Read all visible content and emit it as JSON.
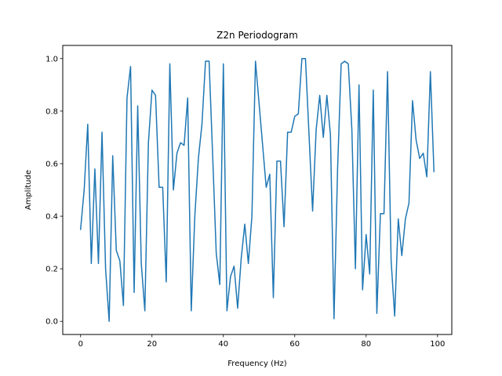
{
  "chart_data": {
    "type": "line",
    "title": "Z2n Periodogram",
    "xlabel": "Frequency (Hz)",
    "ylabel": "Amplitude",
    "xlim": [
      -5,
      104
    ],
    "ylim": [
      -0.05,
      1.05
    ],
    "xticks": [
      0,
      20,
      40,
      60,
      80,
      100
    ],
    "xtick_labels": [
      "0",
      "20",
      "40",
      "60",
      "80",
      "100"
    ],
    "yticks": [
      0.0,
      0.2,
      0.4,
      0.6,
      0.8,
      1.0
    ],
    "ytick_labels": [
      "0.0",
      "0.2",
      "0.4",
      "0.6",
      "0.8",
      "1.0"
    ],
    "grid": false,
    "legend": "none",
    "colors": {
      "series": "#1f77b4"
    },
    "series": [
      {
        "x": [
          0,
          1,
          2,
          3,
          4,
          5,
          6,
          7,
          8,
          9,
          10,
          11,
          12,
          13,
          14,
          15,
          16,
          17,
          18,
          19,
          20,
          21,
          22,
          23,
          24,
          25,
          26,
          27,
          28,
          29,
          30,
          31,
          32,
          33,
          34,
          35,
          36,
          37,
          38,
          39,
          40,
          41,
          42,
          43,
          44,
          45,
          46,
          47,
          48,
          49,
          50,
          51,
          52,
          53,
          54,
          55,
          56,
          57,
          58,
          59,
          60,
          61,
          62,
          63,
          64,
          65,
          66,
          67,
          68,
          69,
          70,
          71,
          72,
          73,
          74,
          75,
          76,
          77,
          78,
          79,
          80,
          81,
          82,
          83,
          84,
          85,
          86,
          87,
          88,
          89,
          90,
          91,
          92,
          93,
          94,
          95,
          96,
          97,
          98,
          99
        ],
        "values": [
          0.35,
          0.5,
          0.75,
          0.22,
          0.58,
          0.22,
          0.72,
          0.2,
          0.0,
          0.63,
          0.27,
          0.23,
          0.06,
          0.85,
          0.97,
          0.11,
          0.82,
          0.22,
          0.04,
          0.68,
          0.88,
          0.86,
          0.51,
          0.51,
          0.15,
          0.98,
          0.5,
          0.64,
          0.68,
          0.67,
          0.85,
          0.04,
          0.4,
          0.62,
          0.75,
          0.99,
          0.99,
          0.63,
          0.26,
          0.14,
          0.98,
          0.04,
          0.17,
          0.21,
          0.05,
          0.24,
          0.37,
          0.22,
          0.4,
          0.99,
          0.83,
          0.67,
          0.51,
          0.56,
          0.09,
          0.61,
          0.61,
          0.36,
          0.72,
          0.72,
          0.78,
          0.79,
          1.0,
          1.0,
          0.71,
          0.42,
          0.73,
          0.86,
          0.7,
          0.86,
          0.71,
          0.01,
          0.58,
          0.98,
          0.99,
          0.98,
          0.73,
          0.2,
          0.9,
          0.12,
          0.33,
          0.18,
          0.88,
          0.03,
          0.41,
          0.41,
          0.95,
          0.23,
          0.02,
          0.39,
          0.25,
          0.39,
          0.45,
          0.84,
          0.69,
          0.62,
          0.64,
          0.55,
          0.95,
          0.57
        ]
      }
    ]
  }
}
